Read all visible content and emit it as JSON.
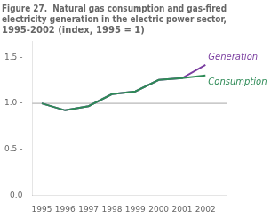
{
  "chart_data": {
    "type": "line",
    "title": [
      "Figure 27.  Natural gas consumption and gas-fired",
      "electricity generation in the electric power sector,",
      "1995-2002 (index, 1995 = 1)"
    ],
    "x": [
      1995,
      1996,
      1997,
      1998,
      1999,
      2000,
      2001,
      2002
    ],
    "series": [
      {
        "name": "Consumption",
        "color": "#2E8B57",
        "values": [
          1.0,
          0.925,
          0.97,
          1.1,
          1.13,
          1.255,
          1.275,
          1.305
        ]
      },
      {
        "name": "Generation",
        "color": "#7B3FA0",
        "values": [
          1.0,
          0.925,
          0.97,
          1.1,
          1.13,
          1.255,
          1.275,
          1.42
        ]
      }
    ],
    "reference_y": 1.0,
    "xlim": [
      1994.6,
      2002.9
    ],
    "xticks": [
      1995,
      1996,
      1997,
      1998,
      1999,
      2000,
      2001,
      2002
    ],
    "ylim": [
      0.0,
      1.68
    ],
    "yticks": [
      {
        "value": 0.0,
        "label": "0.0"
      },
      {
        "value": 0.5,
        "label": "0.5 -"
      },
      {
        "value": 1.0,
        "label": "1.0 -"
      },
      {
        "value": 1.5,
        "label": "1.5 -"
      }
    ],
    "grid": false
  }
}
